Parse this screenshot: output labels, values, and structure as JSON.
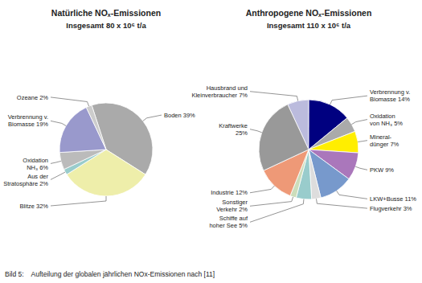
{
  "chart_data": [
    {
      "type": "pie",
      "title": "Natürliche NOₓ-Emissionen",
      "subtitle": "Insgesamt 80 x 10⁶ t/a",
      "categories": [
        "Boden 39%",
        "Blitze 32%",
        "Aus der\nStratosphäre 2%",
        "Oxidation\nNH₃ 6%",
        "Verbrennung v.\nBiomasse 19%",
        "Ozeane 2%"
      ],
      "values": [
        39,
        32,
        2,
        6,
        19,
        2
      ],
      "colors": [
        "#aaaaaa",
        "#eeeeaa",
        "#99cccc",
        "#bbbbbb",
        "#9999cc",
        "#cccccc"
      ],
      "annotations": [
        "Bild 5:    Aufteilung der globalen jährlichen NOx-Emissionen nach [11]"
      ]
    },
    {
      "type": "pie",
      "title": "Anthropogene NOₓ-Emissionen",
      "subtitle": "Insgesamt 110 x 10⁶ t/a",
      "categories": [
        "Hausbrand und\nKleinverbraucher 7%",
        "Verbrennung v.\nBiomasse 14%",
        "Oxidation\nvon NH₃ 5%",
        "Mineral-\ndünger 7%",
        "PKW 9%",
        "LKW+Busse 11%",
        "Flugverkehr 3%",
        "Schiffe auf\nhoher See 5%",
        "Sonstiger\nVerkehr 2%",
        "Industrie 12%",
        "Kraftwerke\n25%"
      ],
      "values": [
        7,
        14,
        5,
        7,
        9,
        11,
        3,
        5,
        2,
        12,
        25
      ],
      "colors": [
        "#bbbbdd",
        "#000080",
        "#aaaaaa",
        "#ffee00",
        "#aa77bb",
        "#7799cc",
        "#dddddd",
        "#99cccc",
        "#ccddbb",
        "#ee9977",
        "#999999"
      ]
    }
  ]
}
